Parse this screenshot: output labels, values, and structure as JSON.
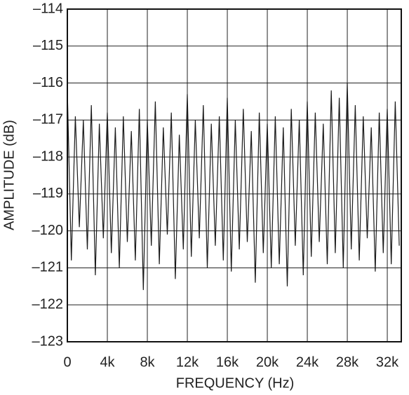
{
  "chart_data": {
    "type": "line",
    "xlabel": "FREQUENCY (Hz)",
    "ylabel": "AMPLITUDE (dB)",
    "x": [
      0,
      400,
      800,
      1200,
      1600,
      2000,
      2400,
      2800,
      3200,
      3600,
      4000,
      4400,
      4800,
      5200,
      5600,
      6000,
      6400,
      6800,
      7200,
      7600,
      8000,
      8400,
      8800,
      9200,
      9600,
      10000,
      10400,
      10800,
      11200,
      11600,
      12000,
      12400,
      12800,
      13200,
      13600,
      14000,
      14400,
      14800,
      15200,
      15600,
      16000,
      16400,
      16800,
      17200,
      17600,
      18000,
      18400,
      18800,
      19200,
      19600,
      20000,
      20400,
      20800,
      21200,
      21600,
      22000,
      22400,
      22800,
      23200,
      23600,
      24000,
      24400,
      24800,
      25200,
      25600,
      26000,
      26400,
      26800,
      27200,
      27600,
      28000,
      28400,
      28800,
      29200,
      29600,
      30000,
      30400,
      30800,
      31200,
      31600,
      32000,
      32400,
      32800,
      33200
    ],
    "values": [
      -116.2,
      -120.8,
      -116.9,
      -119.9,
      -117.0,
      -120.5,
      -116.6,
      -121.2,
      -117.1,
      -120.2,
      -116.8,
      -120.6,
      -117.2,
      -121.0,
      -116.9,
      -120.3,
      -117.3,
      -120.8,
      -116.7,
      -121.6,
      -117.0,
      -120.4,
      -116.5,
      -120.9,
      -117.2,
      -120.1,
      -116.8,
      -121.3,
      -117.4,
      -120.5,
      -116.3,
      -120.7,
      -117.0,
      -120.2,
      -116.6,
      -121.0,
      -117.1,
      -120.4,
      -116.9,
      -120.8,
      -116.4,
      -121.1,
      -117.0,
      -120.5,
      -116.7,
      -120.3,
      -117.3,
      -121.4,
      -116.8,
      -120.6,
      -117.1,
      -121.0,
      -116.9,
      -120.9,
      -117.2,
      -121.5,
      -116.7,
      -120.4,
      -117.0,
      -121.2,
      -116.5,
      -120.7,
      -116.8,
      -120.3,
      -117.1,
      -120.9,
      -116.2,
      -120.6,
      -116.4,
      -121.0,
      -116.0,
      -120.5,
      -116.6,
      -120.8,
      -116.9,
      -120.2,
      -117.2,
      -121.1,
      -116.8,
      -120.6,
      -116.7,
      -120.9,
      -116.5,
      -120.4
    ],
    "color": "#1a1a1a",
    "xlim": [
      0,
      33400
    ],
    "ylim": [
      -123,
      -114
    ],
    "xticks": [
      0,
      {
        "value": 4000,
        "label": "4k"
      },
      {
        "value": 8000,
        "label": "8k"
      },
      {
        "value": 12000,
        "label": "12k"
      },
      {
        "value": 16000,
        "label": "16k"
      },
      {
        "value": 20000,
        "label": "20k"
      },
      {
        "value": 24000,
        "label": "24k"
      },
      {
        "value": 28000,
        "label": "28k"
      },
      {
        "value": 32000,
        "label": "32k"
      }
    ],
    "yticks": [
      {
        "value": -123,
        "label": "–123"
      },
      {
        "value": -122,
        "label": "–122"
      },
      {
        "value": -121,
        "label": "–121"
      },
      {
        "value": -120,
        "label": "–120"
      },
      {
        "value": -119,
        "label": "–119"
      },
      {
        "value": -118,
        "label": "–118"
      },
      {
        "value": -117,
        "label": "–117"
      },
      {
        "value": -116,
        "label": "–116"
      },
      {
        "value": -115,
        "label": "–115"
      },
      {
        "value": -114,
        "label": "–114"
      }
    ],
    "grid": true
  }
}
